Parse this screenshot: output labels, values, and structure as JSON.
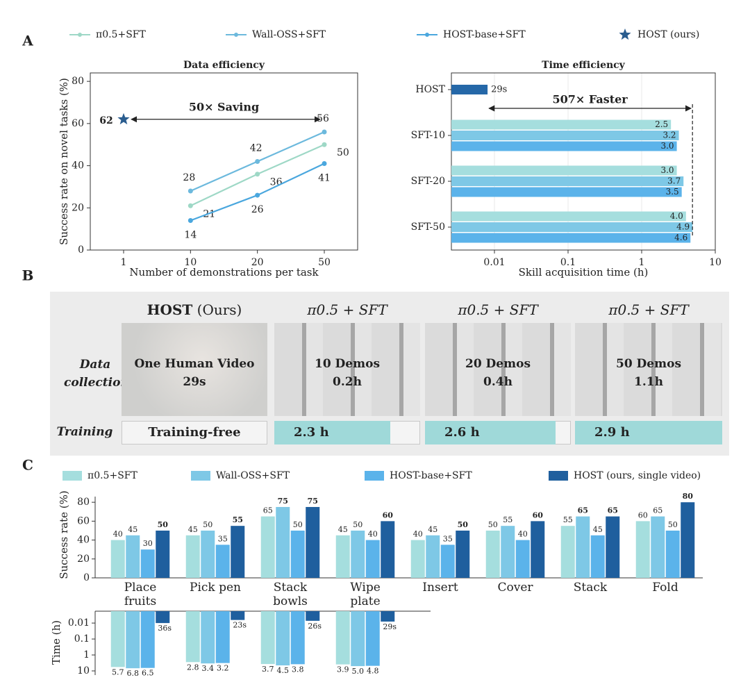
{
  "panel_labels": [
    "A",
    "B",
    "C"
  ],
  "chart_data": [
    {
      "type": "line",
      "title": "Data efficiency",
      "annotation": "50× Saving",
      "xlabel": "Number of demonstrations per task",
      "ylabel": "Success rate on novel tasks (%)",
      "categories": [
        "1",
        "10",
        "20",
        "50"
      ],
      "ylim": [
        0,
        84
      ],
      "yticks": [
        0,
        20,
        40,
        60,
        80
      ],
      "legend": "top",
      "series": [
        {
          "name": "π0.5+SFT",
          "color": "#9ed8c6",
          "values": [
            null,
            21,
            36,
            50
          ]
        },
        {
          "name": "Wall-OSS+SFT",
          "color": "#6cb9dd",
          "values": [
            null,
            28,
            42,
            56
          ]
        },
        {
          "name": "HOST-base+SFT",
          "color": "#4aa7de",
          "values": [
            null,
            14,
            26,
            41
          ]
        },
        {
          "name": "HOST (ours)",
          "color": "#2a5d8f",
          "marker": "star",
          "values": [
            62,
            null,
            null,
            null
          ]
        }
      ]
    },
    {
      "type": "barh",
      "title": "Time efficiency",
      "annotation": "507× Faster",
      "xlabel": "Skill acquisition time (h)",
      "categories": [
        "HOST",
        "SFT-10",
        "SFT-20",
        "SFT-50"
      ],
      "xscale": "log",
      "xlim": [
        0.0026,
        10
      ],
      "xticks": [
        0.01,
        0.1,
        1,
        10
      ],
      "grid": true,
      "series": [
        {
          "color": "#2568a8",
          "values": [
            0.00806,
            null,
            null,
            null
          ],
          "value_labels": [
            "29s",
            null,
            null,
            null
          ]
        },
        {
          "color": "#a5dede",
          "values": [
            null,
            2.5,
            3.0,
            4.0
          ],
          "value_labels": [
            null,
            "2.5",
            "3.0",
            "4.0"
          ]
        },
        {
          "color": "#7ec8e6",
          "values": [
            null,
            3.2,
            3.7,
            4.9
          ]
        },
        {
          "color": "#5bb3ea",
          "values": [
            null,
            3.0,
            3.5,
            4.6
          ],
          "value_labels": [
            null,
            "3.0",
            "3.5",
            "4.6"
          ]
        }
      ]
    },
    {
      "type": "bar",
      "ylabel": "Success rate (%)",
      "categories": [
        "Place fruits",
        "Pick pen",
        "Stack bowls",
        "Wipe plate",
        "Insert",
        "Cover",
        "Stack",
        "Fold"
      ],
      "ylim": [
        0,
        86
      ],
      "yticks": [
        0,
        20,
        40,
        60,
        80
      ],
      "legend": "top",
      "series": [
        {
          "name": "π0.5+SFT",
          "color": "#a5dede",
          "values": [
            40,
            45,
            65,
            45,
            40,
            50,
            55,
            60
          ]
        },
        {
          "name": "Wall-OSS+SFT",
          "color": "#7ec8e6",
          "values": [
            45,
            50,
            75,
            50,
            45,
            55,
            65,
            65
          ]
        },
        {
          "name": "HOST-base+SFT",
          "color": "#5bb3ea",
          "values": [
            30,
            35,
            50,
            40,
            35,
            40,
            45,
            50
          ]
        },
        {
          "name": "HOST (ours, single video)",
          "color": "#1f5f9e",
          "values": [
            50,
            55,
            75,
            60,
            50,
            60,
            65,
            80
          ]
        }
      ]
    },
    {
      "type": "bar",
      "ylabel": "Time (h)",
      "yscale": "log",
      "yreverse": true,
      "ylim": [
        0.0018,
        10
      ],
      "yticks": [
        0.01,
        0.1,
        1,
        10
      ],
      "series": [
        {
          "color": "#a5dede",
          "values": [
            5.7,
            2.8,
            3.7,
            3.9
          ]
        },
        {
          "color": "#7ec8e6",
          "values": [
            6.8,
            3.4,
            4.5,
            5.0
          ],
          "value_labels": [
            "6.8",
            "3.4",
            "4.5",
            "5.0"
          ]
        },
        {
          "color": "#5bb3ea",
          "values": [
            6.5,
            3.2,
            3.8,
            4.8
          ]
        },
        {
          "color": "#1f5f9e",
          "values": [
            0.01,
            0.00639,
            0.00722,
            0.00806
          ],
          "value_labels": [
            "36s",
            "23s",
            "26s",
            "29s"
          ]
        }
      ]
    }
  ],
  "panel_b": {
    "row_labels": [
      "Data collection",
      "Training"
    ],
    "columns": [
      {
        "title": "HOST",
        "title_note": "(Ours)",
        "collection": "One Human Video",
        "collection_time": "29s",
        "training": "Training-free"
      },
      {
        "title": "π0.5 + SFT",
        "collection": "10 Demos",
        "collection_time": "0.2h",
        "training_hours": 2.3,
        "training_label": "2.3 h"
      },
      {
        "title": "π0.5 + SFT",
        "collection": "20 Demos",
        "collection_time": "0.4h",
        "training_hours": 2.6,
        "training_label": "2.6 h"
      },
      {
        "title": "π0.5 + SFT",
        "collection": "50 Demos",
        "collection_time": "1.1h",
        "training_hours": 2.9,
        "training_label": "2.9 h"
      }
    ]
  }
}
